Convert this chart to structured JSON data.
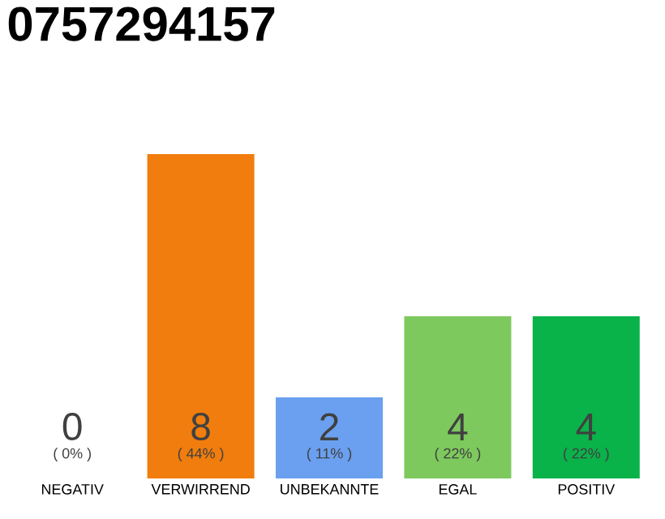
{
  "chart_data": {
    "type": "bar",
    "title": "0757294157",
    "categories": [
      "NEGATIV",
      "VERWIRREND",
      "UNBEKANNTE",
      "EGAL",
      "POSITIV"
    ],
    "values": [
      0,
      8,
      2,
      4,
      4
    ],
    "colors": [
      "#c0c0c0",
      "#f07d0e",
      "#6aa0ef",
      "#7dc95e",
      "#0ab24a"
    ],
    "ylim": [
      0,
      8
    ],
    "tick_labels": "x",
    "data_labels": true,
    "annotations": [
      "( 0% )",
      "( 44% )",
      "( 11% )",
      "( 22% )",
      "( 22% )"
    ]
  }
}
